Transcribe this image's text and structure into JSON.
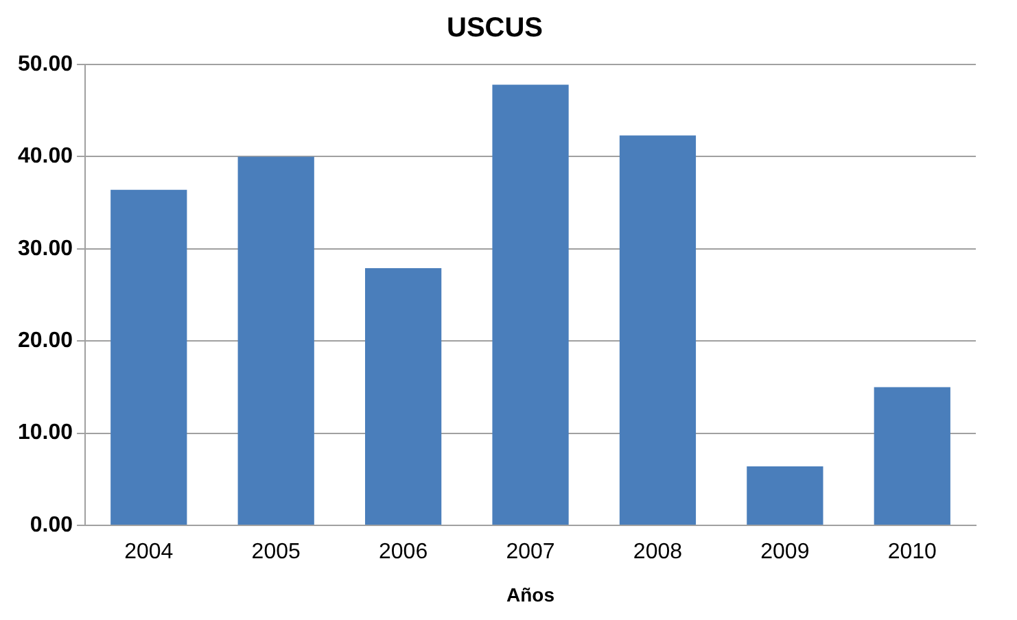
{
  "chart_data": {
    "type": "bar",
    "title": "USCUS",
    "xlabel": "Años",
    "categories": [
      "2004",
      "2005",
      "2006",
      "2007",
      "2008",
      "2009",
      "2010"
    ],
    "values": [
      36.4,
      40.0,
      27.9,
      47.8,
      42.3,
      6.4,
      15.0
    ],
    "color": "#4a7ebb",
    "ylim": [
      0,
      50
    ],
    "yticks": [
      {
        "value": 0,
        "label": "0.00"
      },
      {
        "value": 10,
        "label": "10.00"
      },
      {
        "value": 20,
        "label": "20.00"
      },
      {
        "value": 30,
        "label": "30.00"
      },
      {
        "value": 40,
        "label": "40.00"
      },
      {
        "value": 50,
        "label": "50.00"
      }
    ],
    "grid": "y",
    "legend": false
  }
}
